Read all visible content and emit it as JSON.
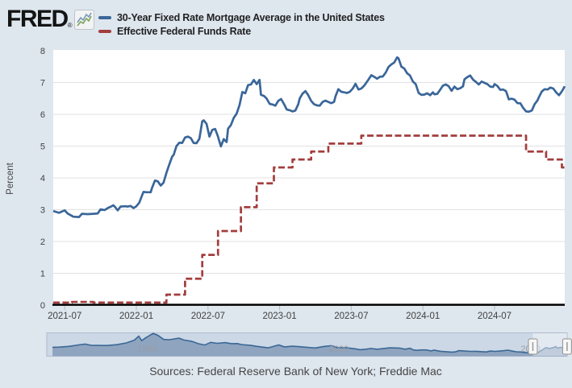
{
  "header": {
    "logo_text": "FRED",
    "logo_registered_mark": "®",
    "legend": [
      {
        "label": "30-Year Fixed Rate Mortgage Average in the United States",
        "color": "#3a6699"
      },
      {
        "label": "Effective Federal Funds Rate",
        "color": "#a33d3d"
      }
    ]
  },
  "footer": {
    "sources_text": "Sources: Federal Reserve Bank of New York; Freddie Mac"
  },
  "chart_data": {
    "type": "line",
    "title": "",
    "xlabel": "",
    "ylabel": "Percent",
    "ylim": [
      0,
      8
    ],
    "y_ticks": [
      0,
      1,
      2,
      3,
      4,
      5,
      6,
      7,
      8
    ],
    "xlim": [
      2021.42,
      2024.99
    ],
    "x_ticks": [
      "2021-07",
      "2022-01",
      "2022-07",
      "2023-01",
      "2023-07",
      "2024-01",
      "2024-07"
    ],
    "x_tick_years": [
      2021.5,
      2022.0,
      2022.5,
      2023.0,
      2023.5,
      2024.0,
      2024.5
    ],
    "grid": true,
    "legend_position": "top-left",
    "colors": {
      "axis": "#000000",
      "gridline": "#e2e2e2",
      "tick_label": "#424242",
      "plot_bg": "#ffffff",
      "page_bg": "#dee6ee"
    },
    "series": [
      {
        "name": "30-Year Fixed Rate Mortgage Average in the United States",
        "color": "#3a6699",
        "style": "solid",
        "interpolation": "linear",
        "points": [
          [
            2021.42,
            2.96
          ],
          [
            2021.46,
            2.9
          ],
          [
            2021.5,
            2.98
          ],
          [
            2021.52,
            2.88
          ],
          [
            2021.56,
            2.78
          ],
          [
            2021.6,
            2.77
          ],
          [
            2021.62,
            2.87
          ],
          [
            2021.66,
            2.86
          ],
          [
            2021.7,
            2.87
          ],
          [
            2021.73,
            2.88
          ],
          [
            2021.75,
            3.01
          ],
          [
            2021.78,
            2.99
          ],
          [
            2021.8,
            3.05
          ],
          [
            2021.82,
            3.09
          ],
          [
            2021.84,
            3.14
          ],
          [
            2021.85,
            3.09
          ],
          [
            2021.87,
            2.98
          ],
          [
            2021.89,
            3.1
          ],
          [
            2021.92,
            3.11
          ],
          [
            2021.94,
            3.1
          ],
          [
            2021.96,
            3.12
          ],
          [
            2021.98,
            3.05
          ],
          [
            2022.0,
            3.11
          ],
          [
            2022.02,
            3.22
          ],
          [
            2022.04,
            3.45
          ],
          [
            2022.05,
            3.56
          ],
          [
            2022.07,
            3.55
          ],
          [
            2022.1,
            3.55
          ],
          [
            2022.11,
            3.69
          ],
          [
            2022.13,
            3.92
          ],
          [
            2022.15,
            3.89
          ],
          [
            2022.17,
            3.76
          ],
          [
            2022.19,
            3.85
          ],
          [
            2022.21,
            4.16
          ],
          [
            2022.23,
            4.42
          ],
          [
            2022.25,
            4.67
          ],
          [
            2022.26,
            4.72
          ],
          [
            2022.28,
            5.0
          ],
          [
            2022.3,
            5.11
          ],
          [
            2022.32,
            5.1
          ],
          [
            2022.34,
            5.27
          ],
          [
            2022.36,
            5.3
          ],
          [
            2022.38,
            5.25
          ],
          [
            2022.4,
            5.1
          ],
          [
            2022.42,
            5.09
          ],
          [
            2022.44,
            5.23
          ],
          [
            2022.46,
            5.78
          ],
          [
            2022.47,
            5.81
          ],
          [
            2022.49,
            5.7
          ],
          [
            2022.51,
            5.3
          ],
          [
            2022.53,
            5.51
          ],
          [
            2022.55,
            5.54
          ],
          [
            2022.57,
            5.3
          ],
          [
            2022.59,
            4.99
          ],
          [
            2022.61,
            5.22
          ],
          [
            2022.63,
            5.13
          ],
          [
            2022.64,
            5.55
          ],
          [
            2022.66,
            5.66
          ],
          [
            2022.68,
            5.89
          ],
          [
            2022.7,
            6.02
          ],
          [
            2022.72,
            6.29
          ],
          [
            2022.74,
            6.7
          ],
          [
            2022.76,
            6.66
          ],
          [
            2022.78,
            6.92
          ],
          [
            2022.8,
            6.94
          ],
          [
            2022.82,
            7.08
          ],
          [
            2022.84,
            6.95
          ],
          [
            2022.86,
            7.08
          ],
          [
            2022.87,
            6.61
          ],
          [
            2022.89,
            6.58
          ],
          [
            2022.91,
            6.49
          ],
          [
            2022.93,
            6.33
          ],
          [
            2022.95,
            6.31
          ],
          [
            2022.97,
            6.27
          ],
          [
            2022.99,
            6.42
          ],
          [
            2023.01,
            6.48
          ],
          [
            2023.03,
            6.33
          ],
          [
            2023.05,
            6.15
          ],
          [
            2023.07,
            6.13
          ],
          [
            2023.09,
            6.09
          ],
          [
            2023.11,
            6.12
          ],
          [
            2023.13,
            6.32
          ],
          [
            2023.14,
            6.5
          ],
          [
            2023.16,
            6.65
          ],
          [
            2023.18,
            6.73
          ],
          [
            2023.2,
            6.6
          ],
          [
            2023.22,
            6.42
          ],
          [
            2023.24,
            6.32
          ],
          [
            2023.26,
            6.28
          ],
          [
            2023.28,
            6.27
          ],
          [
            2023.3,
            6.39
          ],
          [
            2023.32,
            6.43
          ],
          [
            2023.34,
            6.39
          ],
          [
            2023.36,
            6.35
          ],
          [
            2023.38,
            6.39
          ],
          [
            2023.39,
            6.57
          ],
          [
            2023.41,
            6.79
          ],
          [
            2023.43,
            6.71
          ],
          [
            2023.45,
            6.69
          ],
          [
            2023.47,
            6.67
          ],
          [
            2023.49,
            6.71
          ],
          [
            2023.51,
            6.81
          ],
          [
            2023.53,
            6.96
          ],
          [
            2023.55,
            6.78
          ],
          [
            2023.57,
            6.81
          ],
          [
            2023.59,
            6.9
          ],
          [
            2023.6,
            6.96
          ],
          [
            2023.62,
            7.09
          ],
          [
            2023.64,
            7.23
          ],
          [
            2023.66,
            7.18
          ],
          [
            2023.68,
            7.12
          ],
          [
            2023.7,
            7.18
          ],
          [
            2023.72,
            7.19
          ],
          [
            2023.74,
            7.31
          ],
          [
            2023.76,
            7.49
          ],
          [
            2023.78,
            7.57
          ],
          [
            2023.8,
            7.63
          ],
          [
            2023.82,
            7.79
          ],
          [
            2023.83,
            7.76
          ],
          [
            2023.85,
            7.5
          ],
          [
            2023.87,
            7.44
          ],
          [
            2023.89,
            7.29
          ],
          [
            2023.91,
            7.22
          ],
          [
            2023.93,
            7.03
          ],
          [
            2023.95,
            6.95
          ],
          [
            2023.97,
            6.67
          ],
          [
            2023.99,
            6.61
          ],
          [
            2024.01,
            6.62
          ],
          [
            2024.03,
            6.66
          ],
          [
            2024.05,
            6.6
          ],
          [
            2024.07,
            6.69
          ],
          [
            2024.08,
            6.63
          ],
          [
            2024.1,
            6.64
          ],
          [
            2024.12,
            6.77
          ],
          [
            2024.14,
            6.9
          ],
          [
            2024.16,
            6.94
          ],
          [
            2024.18,
            6.88
          ],
          [
            2024.2,
            6.74
          ],
          [
            2024.22,
            6.87
          ],
          [
            2024.24,
            6.79
          ],
          [
            2024.26,
            6.82
          ],
          [
            2024.28,
            6.88
          ],
          [
            2024.29,
            7.1
          ],
          [
            2024.31,
            7.17
          ],
          [
            2024.33,
            7.22
          ],
          [
            2024.35,
            7.09
          ],
          [
            2024.37,
            7.02
          ],
          [
            2024.39,
            6.94
          ],
          [
            2024.41,
            7.03
          ],
          [
            2024.43,
            6.99
          ],
          [
            2024.45,
            6.95
          ],
          [
            2024.47,
            6.87
          ],
          [
            2024.49,
            6.86
          ],
          [
            2024.5,
            6.95
          ],
          [
            2024.52,
            6.89
          ],
          [
            2024.54,
            6.77
          ],
          [
            2024.56,
            6.78
          ],
          [
            2024.58,
            6.73
          ],
          [
            2024.6,
            6.47
          ],
          [
            2024.62,
            6.49
          ],
          [
            2024.64,
            6.46
          ],
          [
            2024.66,
            6.35
          ],
          [
            2024.68,
            6.35
          ],
          [
            2024.7,
            6.2
          ],
          [
            2024.72,
            6.09
          ],
          [
            2024.74,
            6.08
          ],
          [
            2024.76,
            6.12
          ],
          [
            2024.78,
            6.32
          ],
          [
            2024.8,
            6.44
          ],
          [
            2024.81,
            6.54
          ],
          [
            2024.83,
            6.72
          ],
          [
            2024.85,
            6.79
          ],
          [
            2024.87,
            6.78
          ],
          [
            2024.89,
            6.84
          ],
          [
            2024.91,
            6.81
          ],
          [
            2024.93,
            6.69
          ],
          [
            2024.95,
            6.6
          ],
          [
            2024.97,
            6.72
          ],
          [
            2024.99,
            6.88
          ]
        ]
      },
      {
        "name": "Effective Federal Funds Rate",
        "color": "#a33d3d",
        "style": "dashed",
        "interpolation": "step-after",
        "points": [
          [
            2021.42,
            0.08
          ],
          [
            2021.55,
            0.1
          ],
          [
            2021.7,
            0.08
          ],
          [
            2022.21,
            0.33
          ],
          [
            2022.34,
            0.83
          ],
          [
            2022.46,
            1.58
          ],
          [
            2022.57,
            2.33
          ],
          [
            2022.73,
            3.08
          ],
          [
            2022.84,
            3.83
          ],
          [
            2022.96,
            4.33
          ],
          [
            2023.09,
            4.58
          ],
          [
            2023.22,
            4.83
          ],
          [
            2023.34,
            5.08
          ],
          [
            2023.57,
            5.33
          ],
          [
            2024.72,
            4.83
          ],
          [
            2024.86,
            4.58
          ],
          [
            2024.97,
            4.33
          ]
        ]
      }
    ],
    "range_selector": {
      "series_name": "30-Year Fixed Rate Mortgage Average, full history",
      "labels": [
        "1980",
        "2000",
        "2020"
      ],
      "label_years": [
        1980,
        2000,
        2020
      ],
      "xlim": [
        1970.7,
        2025.0
      ],
      "vmax": 19,
      "selected_range_years": [
        2021.42,
        2024.99
      ],
      "fill_color": "#8fa4bf",
      "line_color": "#3a6795",
      "track_color": "#ccd8e6",
      "points": [
        [
          1971.3,
          7.3
        ],
        [
          1972,
          7.4
        ],
        [
          1973,
          8.0
        ],
        [
          1974,
          9.2
        ],
        [
          1974.7,
          9.9
        ],
        [
          1975.3,
          8.9
        ],
        [
          1976,
          8.8
        ],
        [
          1977,
          8.7
        ],
        [
          1978,
          9.4
        ],
        [
          1979,
          10.8
        ],
        [
          1979.8,
          12.9
        ],
        [
          1980.3,
          16.3
        ],
        [
          1980.6,
          12.7
        ],
        [
          1981,
          14.9
        ],
        [
          1981.8,
          18.6
        ],
        [
          1982.3,
          17
        ],
        [
          1982.9,
          13.6
        ],
        [
          1983.5,
          13.4
        ],
        [
          1984.5,
          14.7
        ],
        [
          1985,
          13.2
        ],
        [
          1985.8,
          12.2
        ],
        [
          1986.5,
          10.2
        ],
        [
          1987.2,
          9.1
        ],
        [
          1987.8,
          11.3
        ],
        [
          1988.5,
          10.5
        ],
        [
          1989.3,
          11.1
        ],
        [
          1990,
          10.2
        ],
        [
          1990.6,
          10.3
        ],
        [
          1991,
          9.5
        ],
        [
          1992,
          8.8
        ],
        [
          1992.5,
          8.1
        ],
        [
          1993.2,
          7.4
        ],
        [
          1993.8,
          6.8
        ],
        [
          1994.9,
          9.2
        ],
        [
          1995.5,
          7.6
        ],
        [
          1996.3,
          8.1
        ],
        [
          1997,
          7.8
        ],
        [
          1997.8,
          7.3
        ],
        [
          1998.7,
          6.7
        ],
        [
          1999.6,
          7.9
        ],
        [
          2000.4,
          8.6
        ],
        [
          2001,
          7
        ],
        [
          2002,
          6.8
        ],
        [
          2002.8,
          6.1
        ],
        [
          2003.4,
          5.3
        ],
        [
          2004,
          5.7
        ],
        [
          2004.5,
          6.3
        ],
        [
          2005.2,
          5.7
        ],
        [
          2006.5,
          6.8
        ],
        [
          2007.5,
          6.6
        ],
        [
          2008.1,
          5.7
        ],
        [
          2008.6,
          6.5
        ],
        [
          2008.95,
          5.1
        ],
        [
          2009.3,
          4.8
        ],
        [
          2009.8,
          5.1
        ],
        [
          2010.3,
          5.1
        ],
        [
          2010.8,
          4.3
        ],
        [
          2011.1,
          4.9
        ],
        [
          2011.8,
          4
        ],
        [
          2012.4,
          3.7
        ],
        [
          2012.9,
          3.35
        ],
        [
          2013.3,
          3.5
        ],
        [
          2013.7,
          4.5
        ],
        [
          2014.2,
          4.3
        ],
        [
          2014.9,
          3.9
        ],
        [
          2015.5,
          4
        ],
        [
          2016.1,
          3.7
        ],
        [
          2016.6,
          3.45
        ],
        [
          2016.95,
          4.2
        ],
        [
          2017.5,
          3.9
        ],
        [
          2018.3,
          4.45
        ],
        [
          2018.85,
          4.94
        ],
        [
          2019.3,
          4.1
        ],
        [
          2019.7,
          3.6
        ],
        [
          2020.2,
          3.4
        ],
        [
          2020.6,
          3
        ],
        [
          2020.97,
          2.67
        ],
        [
          2021.3,
          3.1
        ],
        [
          2021.6,
          2.8
        ],
        [
          2022,
          3.1
        ],
        [
          2022.4,
          5.1
        ],
        [
          2022.8,
          7.08
        ],
        [
          2023.1,
          6.3
        ],
        [
          2023.5,
          6.8
        ],
        [
          2023.8,
          7.79
        ],
        [
          2024,
          6.6
        ],
        [
          2024.35,
          7.2
        ],
        [
          2024.7,
          6.1
        ],
        [
          2024.99,
          6.9
        ]
      ]
    }
  }
}
